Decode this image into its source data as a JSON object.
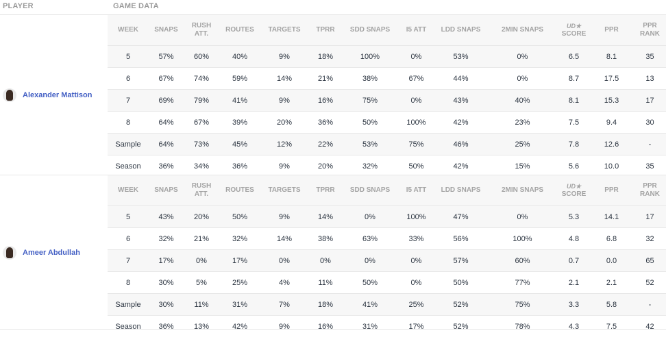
{
  "header": {
    "player": "PLAYER",
    "game_data": "GAME DATA"
  },
  "columns": [
    "WEEK",
    "SNAPS",
    "RUSH ATT.",
    "ROUTES",
    "TARGETS",
    "TPRR",
    "SDD SNAPS",
    "I5 ATT",
    "LDD SNAPS",
    "2MIN SNAPS",
    "SCORE",
    "PPR",
    "PPR RANK"
  ],
  "score_logo": "UD★",
  "players": [
    {
      "name": "Alexander Mattison",
      "rows": [
        [
          "5",
          "57%",
          "60%",
          "40%",
          "9%",
          "18%",
          "100%",
          "0%",
          "53%",
          "0%",
          "6.5",
          "8.1",
          "35"
        ],
        [
          "6",
          "67%",
          "74%",
          "59%",
          "14%",
          "21%",
          "38%",
          "67%",
          "44%",
          "0%",
          "8.7",
          "17.5",
          "13"
        ],
        [
          "7",
          "69%",
          "79%",
          "41%",
          "9%",
          "16%",
          "75%",
          "0%",
          "43%",
          "40%",
          "8.1",
          "15.3",
          "17"
        ],
        [
          "8",
          "64%",
          "67%",
          "39%",
          "20%",
          "36%",
          "50%",
          "100%",
          "42%",
          "23%",
          "7.5",
          "9.4",
          "30"
        ],
        [
          "Sample",
          "64%",
          "73%",
          "45%",
          "12%",
          "22%",
          "53%",
          "75%",
          "46%",
          "25%",
          "7.8",
          "12.6",
          "-"
        ],
        [
          "Season",
          "36%",
          "34%",
          "36%",
          "9%",
          "20%",
          "32%",
          "50%",
          "42%",
          "15%",
          "5.6",
          "10.0",
          "35"
        ]
      ]
    },
    {
      "name": "Ameer Abdullah",
      "rows": [
        [
          "5",
          "43%",
          "20%",
          "50%",
          "9%",
          "14%",
          "0%",
          "100%",
          "47%",
          "0%",
          "5.3",
          "14.1",
          "17"
        ],
        [
          "6",
          "32%",
          "21%",
          "32%",
          "14%",
          "38%",
          "63%",
          "33%",
          "56%",
          "100%",
          "4.8",
          "6.8",
          "32"
        ],
        [
          "7",
          "17%",
          "0%",
          "17%",
          "0%",
          "0%",
          "0%",
          "0%",
          "57%",
          "60%",
          "0.7",
          "0.0",
          "65"
        ],
        [
          "8",
          "30%",
          "5%",
          "25%",
          "4%",
          "11%",
          "50%",
          "0%",
          "50%",
          "77%",
          "2.1",
          "2.1",
          "52"
        ],
        [
          "Sample",
          "30%",
          "11%",
          "31%",
          "7%",
          "18%",
          "41%",
          "25%",
          "52%",
          "75%",
          "3.3",
          "5.8",
          "-"
        ],
        [
          "Season",
          "36%",
          "13%",
          "42%",
          "9%",
          "16%",
          "31%",
          "17%",
          "52%",
          "78%",
          "4.3",
          "7.5",
          "42"
        ]
      ]
    }
  ]
}
